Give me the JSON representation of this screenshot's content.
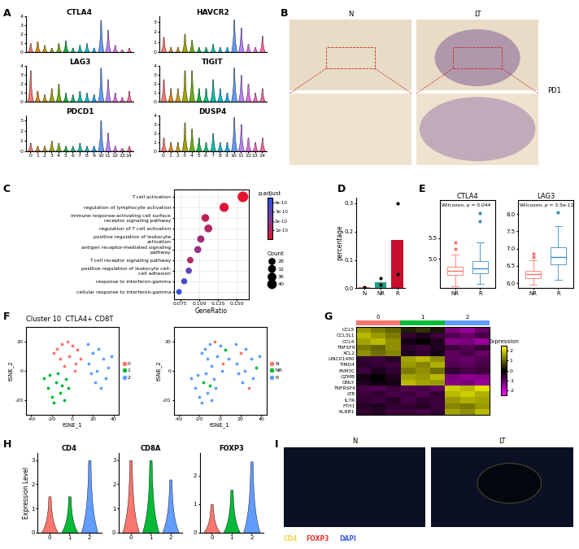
{
  "chart_data": [
    {
      "panel": "A",
      "type": "violin",
      "categories": [
        "0",
        "1",
        "2",
        "3",
        "4",
        "5",
        "6",
        "7",
        "8",
        "9",
        "10",
        "11",
        "12",
        "13",
        "14"
      ],
      "colors": [
        "#F8766D",
        "#E58700",
        "#C99800",
        "#A3A500",
        "#6BB100",
        "#00BA38",
        "#00BF7D",
        "#00C0AF",
        "#00BCD8",
        "#00B0F6",
        "#619CFF",
        "#B983FF",
        "#E76BF3",
        "#FD61D1",
        "#FF67A4"
      ],
      "genes": [
        {
          "name": "CTLA4",
          "ylim": [
            0,
            4
          ],
          "yticks": [
            0,
            1,
            2,
            3,
            4
          ],
          "tick_labels": "y",
          "values": [
            1.0,
            1.2,
            0.8,
            0.5,
            1.0,
            1.3,
            0.5,
            0.8,
            1.0,
            0.5,
            3.6,
            2.5,
            0.8,
            0.3,
            0.5
          ]
        },
        {
          "name": "HAVCR2",
          "ylim": [
            0,
            3.5
          ],
          "yticks": [
            0,
            1,
            2,
            3
          ],
          "tick_labels": "y",
          "values": [
            1.5,
            0.5,
            0.5,
            1.8,
            1.2,
            0.5,
            0.5,
            0.8,
            0.5,
            0.5,
            3.2,
            2.4,
            0.8,
            0.5,
            1.6
          ]
        },
        {
          "name": "LAG3",
          "ylim": [
            0,
            4
          ],
          "yticks": [
            0,
            1,
            2,
            3,
            4
          ],
          "tick_labels": "y",
          "values": [
            3.5,
            1.2,
            0.8,
            1.5,
            2.0,
            1.0,
            0.8,
            1.2,
            1.0,
            0.8,
            3.8,
            2.5,
            1.0,
            0.5,
            1.2
          ]
        },
        {
          "name": "TIGIT",
          "ylim": [
            0,
            4
          ],
          "yticks": [
            0,
            1,
            2,
            3,
            4
          ],
          "tick_labels": "y",
          "values": [
            2.5,
            1.5,
            1.5,
            3.5,
            3.5,
            1.5,
            1.5,
            2.5,
            1.5,
            1.0,
            3.8,
            3.0,
            2.0,
            1.0,
            1.5
          ]
        },
        {
          "name": "PDCD1",
          "ylim": [
            0,
            3.5
          ],
          "yticks": [
            0,
            1,
            2,
            3
          ],
          "values": [
            0.8,
            0.5,
            0.5,
            1.0,
            0.8,
            0.5,
            0.5,
            0.8,
            0.5,
            0.5,
            3.0,
            1.8,
            0.5,
            0.3,
            0.5
          ]
        },
        {
          "name": "DUSP4",
          "ylim": [
            0,
            4
          ],
          "yticks": [
            0,
            1,
            2,
            3,
            4
          ],
          "values": [
            1.5,
            1.0,
            1.0,
            3.2,
            2.5,
            1.5,
            1.0,
            2.0,
            1.0,
            1.0,
            3.8,
            3.0,
            1.5,
            1.0,
            1.5
          ]
        }
      ]
    },
    {
      "panel": "B",
      "type": "image",
      "labels": [
        "N",
        "LT"
      ],
      "stain": "PD1"
    },
    {
      "panel": "C",
      "type": "dot",
      "xlabel": "GeneRatio",
      "categories": [
        "T cell activation",
        "regulation of lymphocyte activation",
        "immune response-activating cell surface receptor signaling pathway",
        "regulation of T cell activation",
        "positive regulation of leukocyte activation",
        "antigen receptor-mediated signaling pathway",
        "T cell receptor signaling pathway",
        "positive regulation of leukocyte cell-cell adhesion",
        "response to interferon-gamma",
        "cellular response to interferon-gamma"
      ],
      "values": [
        0.158,
        0.133,
        0.108,
        0.112,
        0.102,
        0.098,
        0.088,
        0.086,
        0.08,
        0.073
      ],
      "count": [
        45,
        38,
        31,
        32,
        29,
        28,
        25,
        24,
        23,
        21
      ],
      "p_adjust": [
        1e-11,
        3e-11,
        8e-11,
        1.2e-10,
        1.5e-10,
        1.7e-10,
        1.2e-10,
        3e-10,
        3.8e-10,
        4.2e-10
      ],
      "color_title": "p.adjust",
      "color_range": [
        1e-11,
        4.5e-10
      ],
      "color_ticks": [
        {
          "value": 1e-10,
          "label": "1e-10"
        },
        {
          "value": 2e-10,
          "label": "2e-10"
        },
        {
          "value": 3e-10,
          "label": "3e-10"
        },
        {
          "value": 4e-10,
          "label": "4e-10"
        }
      ],
      "size_title": "Count",
      "size_legend": [
        28,
        32,
        36,
        40
      ],
      "xlim": [
        0.066,
        0.166
      ],
      "xticks": [
        0.075,
        {
          "value": 0.1,
          "label": "0.100"
        },
        0.125,
        {
          "value": 0.15,
          "label": "0.150"
        }
      ],
      "grid": true
    },
    {
      "panel": "D",
      "type": "bar",
      "ylabel": "percentage",
      "categories": [
        "N",
        "NR",
        "R"
      ],
      "values": [
        0.003,
        0.02,
        0.17
      ],
      "points": [
        [
          0.002,
          0.004
        ],
        [
          0.012,
          0.035
        ],
        [
          0.05,
          0.3
        ]
      ],
      "colors": [
        "#F8766D",
        "#1FA187",
        "#C8102E"
      ],
      "ylim": [
        0,
        0.32
      ],
      "yticks": [
        0.0,
        0.1,
        0.2,
        0.3
      ]
    },
    {
      "panel": "E",
      "type": "box",
      "charts": [
        {
          "title": "CTLA4",
          "annotation": "Wilcoxon, p = 0.044",
          "ylim": [
            4.3,
            6.4
          ],
          "yticks": [
            5.0,
            5.5
          ],
          "boxes": [
            {
              "name": "NR",
              "color": "#F8766D",
              "whislo": 4.35,
              "q1": 4.62,
              "med": 4.72,
              "q3": 4.82,
              "whishi": 5.1,
              "fliers": [
                5.25,
                5.4
              ]
            },
            {
              "name": "R",
              "color": "#3C8DC4",
              "whislo": 4.4,
              "q1": 4.65,
              "med": 4.78,
              "q3": 4.95,
              "whishi": 5.4,
              "fliers": [
                5.9,
                6.1
              ]
            }
          ]
        },
        {
          "title": "LAG3",
          "annotation": "Wilcoxon, p = 3.5e-12",
          "ylim": [
            5.85,
            8.4
          ],
          "yticks": [
            6.0,
            6.5,
            7.0,
            7.5,
            8.0
          ],
          "boxes": [
            {
              "name": "NR",
              "color": "#F8766D",
              "whislo": 5.95,
              "q1": 6.15,
              "med": 6.25,
              "q3": 6.35,
              "whishi": 6.65,
              "fliers": [
                6.75,
                6.85
              ]
            },
            {
              "name": "R",
              "color": "#3C8DC4",
              "whislo": 6.1,
              "q1": 6.55,
              "med": 6.75,
              "q3": 7.05,
              "whishi": 7.65,
              "fliers": [
                8.05
              ]
            }
          ]
        }
      ]
    },
    {
      "panel": "F",
      "type": "scatter",
      "title": "Cluster 10  CTLA4+ CD8T",
      "xlabel": "tSNE_1",
      "ylabel": "tSNE_2",
      "xlim": [
        -45,
        45
      ],
      "xticks": [
        -40,
        -20,
        0,
        20,
        40
      ],
      "ylim": [
        -30,
        30
      ],
      "yticks": [
        -20,
        0,
        20
      ],
      "legend": "center left",
      "x": [
        -15,
        -10,
        -5,
        0,
        5,
        8,
        -12,
        -3,
        3,
        -8,
        2,
        -18,
        -28,
        -24,
        -20,
        -16,
        -12,
        -8,
        -4,
        -22,
        -14,
        -6,
        -18,
        -10,
        15,
        20,
        25,
        30,
        35,
        18,
        22,
        28,
        32,
        24,
        16,
        38
      ],
      "y": [
        15,
        18,
        20,
        17,
        14,
        8,
        8,
        10,
        5,
        3,
        0,
        12,
        -5,
        -12,
        -18,
        -8,
        -15,
        -20,
        -12,
        -3,
        -2,
        -6,
        -22,
        -10,
        18,
        12,
        15,
        8,
        2,
        -2,
        -8,
        -12,
        -5,
        0,
        5,
        10
      ],
      "cluster": [
        "0",
        "0",
        "0",
        "0",
        "0",
        "0",
        "0",
        "0",
        "0",
        "0",
        "0",
        "0",
        "1",
        "1",
        "1",
        "1",
        "1",
        "1",
        "1",
        "1",
        "1",
        "1",
        "1",
        "1",
        "2",
        "2",
        "2",
        "2",
        "2",
        "2",
        "2",
        "2",
        "2",
        "2",
        "2",
        "2"
      ],
      "group": [
        "R",
        "R",
        "N",
        "R",
        "NR",
        "R",
        "R",
        "R",
        "N",
        "R",
        "R",
        "R",
        "R",
        "R",
        "R",
        "NR",
        "R",
        "R",
        "R",
        "R",
        "R",
        "R",
        "R",
        "NR",
        "R",
        "N",
        "R",
        "R",
        "NR",
        "R",
        "R",
        "N",
        "R",
        "R",
        "R",
        "R"
      ],
      "cluster_series": [
        {
          "name": "0",
          "color": "#F8766D"
        },
        {
          "name": "1",
          "color": "#00BA38"
        },
        {
          "name": "2",
          "color": "#619CFF"
        }
      ],
      "group_series": [
        {
          "name": "N",
          "color": "#F8766D"
        },
        {
          "name": "NR",
          "color": "#00BA38"
        },
        {
          "name": "R",
          "color": "#619CFF"
        }
      ]
    },
    {
      "panel": "G",
      "type": "heatmap",
      "rows": [
        "CCL5",
        "CCL3L1",
        "CCL4",
        "TNFSF9",
        "XCL2",
        "LINC01480",
        "TIMD4",
        "FAM3C",
        "GZMB",
        "GNLY",
        "TNFRSF4",
        "LTB",
        "IL7R",
        "FTH1",
        "KLRB1"
      ],
      "column_groups": [
        "0",
        "0",
        "0",
        "1",
        "1",
        "1",
        "2",
        "2",
        "2"
      ],
      "group_colors": {
        "0": "#F8766D",
        "1": "#00BA38",
        "2": "#619CFF"
      },
      "cells": [
        [
          1.5,
          1.2,
          1.0,
          0.3,
          0.5,
          0.2,
          -1.2,
          -1.5,
          -1.0
        ],
        [
          1.8,
          1.5,
          1.2,
          -0.5,
          -0.3,
          -0.6,
          -0.8,
          -1.0,
          -0.7
        ],
        [
          1.6,
          1.8,
          1.4,
          -0.2,
          0.0,
          -0.3,
          -1.3,
          -1.2,
          -1.5
        ],
        [
          1.2,
          1.0,
          1.4,
          -0.4,
          -0.6,
          -0.3,
          -0.6,
          -0.8,
          -0.5
        ],
        [
          1.4,
          1.1,
          1.3,
          -0.3,
          -0.5,
          -0.2,
          -0.9,
          -0.7,
          -1.0
        ],
        [
          -0.5,
          -0.6,
          -0.4,
          1.6,
          1.8,
          1.4,
          -0.9,
          -1.0,
          -0.8
        ],
        [
          -0.4,
          -0.5,
          -0.6,
          1.5,
          1.3,
          1.7,
          -0.8,
          -0.9,
          -0.7
        ],
        [
          -0.6,
          -0.3,
          -0.5,
          1.2,
          1.4,
          1.1,
          -0.5,
          -0.7,
          -0.6
        ],
        [
          -0.2,
          0.0,
          -0.3,
          1.6,
          1.5,
          1.8,
          -1.2,
          -1.4,
          -1.3
        ],
        [
          -0.3,
          -0.1,
          -0.2,
          1.8,
          1.6,
          1.5,
          -1.3,
          -1.2,
          -1.5
        ],
        [
          -0.7,
          -0.8,
          -0.6,
          -0.8,
          -0.7,
          -0.9,
          2.0,
          1.8,
          2.2
        ],
        [
          -0.6,
          -0.5,
          -0.7,
          -0.6,
          -0.8,
          -0.5,
          1.8,
          2.0,
          1.7
        ],
        [
          -0.5,
          -0.6,
          -0.4,
          -0.7,
          -0.5,
          -0.6,
          1.5,
          1.7,
          1.6
        ],
        [
          -0.4,
          -0.3,
          -0.5,
          -0.5,
          -0.4,
          -0.6,
          1.3,
          1.2,
          1.5
        ],
        [
          -0.5,
          -0.4,
          -0.6,
          -0.6,
          -0.7,
          -0.5,
          1.6,
          1.4,
          1.8
        ]
      ],
      "color_title": "Expression",
      "color_range": [
        -2.5,
        2.5
      ],
      "color_ticks": [
        -2,
        -1,
        0,
        1,
        2
      ]
    },
    {
      "panel": "H",
      "type": "violin",
      "ylabel": "Expression Level",
      "categories": [
        "0",
        "1",
        "2"
      ],
      "colors": [
        "#F8766D",
        "#00BA38",
        "#619CFF"
      ],
      "genes": [
        {
          "name": "CD4",
          "ylim": [
            0,
            3.3
          ],
          "yticks": [
            0,
            1,
            2,
            3
          ],
          "values": [
            1.5,
            1.5,
            3.0
          ]
        },
        {
          "name": "CD8A",
          "ylim": [
            0,
            3.3
          ],
          "yticks": [
            0,
            1,
            2,
            3
          ],
          "values": [
            3.0,
            3.0,
            2.2
          ]
        },
        {
          "name": "FOXP3",
          "ylim": [
            0,
            2.8
          ],
          "yticks": [
            0,
            1,
            2
          ],
          "values": [
            1.0,
            1.5,
            2.5
          ]
        }
      ]
    },
    {
      "panel": "I",
      "type": "image",
      "labels": [
        "N",
        "LT"
      ],
      "stains": [
        {
          "name": "CD4",
          "color": "#E8D84A"
        },
        {
          "name": "FOXP3",
          "color": "#E8302A"
        },
        {
          "name": "DAPI",
          "color": "#3A5BE8"
        }
      ]
    }
  ]
}
